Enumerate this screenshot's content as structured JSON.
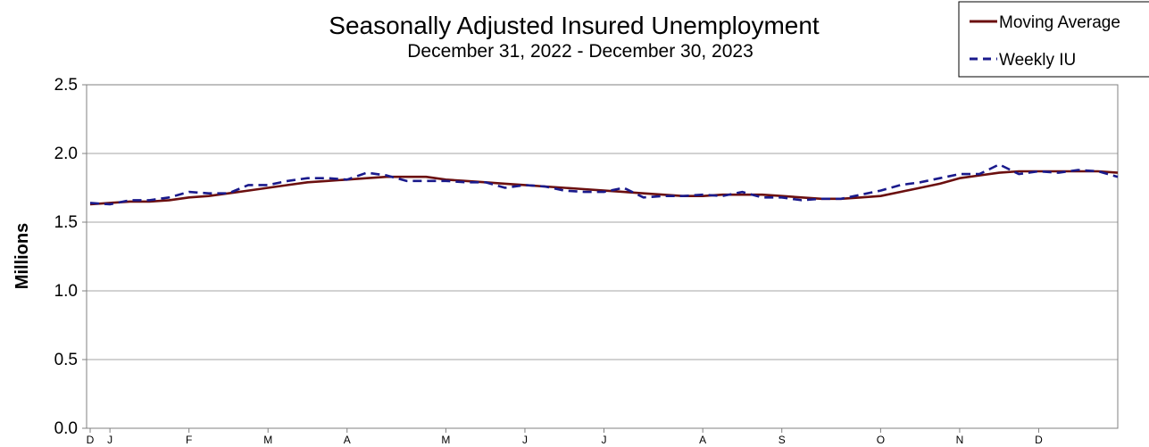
{
  "chart_data": {
    "type": "line",
    "title": "Seasonally Adjusted Insured Unemployment",
    "subtitle": "December 31, 2022 - December 30, 2023",
    "ylabel": "Millions",
    "xlabel": "",
    "ylim": [
      0,
      2.5
    ],
    "yticks": [
      "0.0",
      "0.5",
      "1.0",
      "1.5",
      "2.0",
      "2.5"
    ],
    "x_tick_labels": [
      {
        "label": "D",
        "week": 0
      },
      {
        "label": "J",
        "week": 1
      },
      {
        "label": "F",
        "week": 5
      },
      {
        "label": "M",
        "week": 9
      },
      {
        "label": "A",
        "week": 13
      },
      {
        "label": "M",
        "week": 18
      },
      {
        "label": "J",
        "week": 22
      },
      {
        "label": "J",
        "week": 26
      },
      {
        "label": "A",
        "week": 31
      },
      {
        "label": "S",
        "week": 35
      },
      {
        "label": "O",
        "week": 40
      },
      {
        "label": "N",
        "week": 44
      },
      {
        "label": "D",
        "week": 48
      }
    ],
    "grid": true,
    "legend_position": "top-right",
    "series": [
      {
        "name": "Moving Average",
        "color": "#6b0f0f",
        "style": "solid",
        "values": [
          1.63,
          1.64,
          1.65,
          1.65,
          1.66,
          1.68,
          1.69,
          1.71,
          1.73,
          1.75,
          1.77,
          1.79,
          1.8,
          1.81,
          1.82,
          1.83,
          1.83,
          1.83,
          1.81,
          1.8,
          1.79,
          1.78,
          1.77,
          1.76,
          1.75,
          1.74,
          1.73,
          1.72,
          1.71,
          1.7,
          1.69,
          1.69,
          1.7,
          1.7,
          1.7,
          1.69,
          1.68,
          1.67,
          1.67,
          1.68,
          1.69,
          1.72,
          1.75,
          1.78,
          1.82,
          1.84,
          1.86,
          1.87,
          1.87,
          1.87,
          1.87,
          1.87,
          1.86
        ]
      },
      {
        "name": "Weekly IU",
        "color": "#1a1a8c",
        "style": "dashed",
        "values": [
          1.64,
          1.63,
          1.66,
          1.66,
          1.68,
          1.72,
          1.71,
          1.71,
          1.77,
          1.77,
          1.8,
          1.82,
          1.82,
          1.81,
          1.86,
          1.84,
          1.8,
          1.8,
          1.8,
          1.79,
          1.79,
          1.75,
          1.77,
          1.76,
          1.73,
          1.72,
          1.72,
          1.75,
          1.68,
          1.69,
          1.69,
          1.7,
          1.69,
          1.72,
          1.68,
          1.68,
          1.66,
          1.67,
          1.67,
          1.7,
          1.73,
          1.77,
          1.79,
          1.82,
          1.85,
          1.85,
          1.92,
          1.85,
          1.87,
          1.86,
          1.88,
          1.87,
          1.83
        ]
      }
    ]
  }
}
